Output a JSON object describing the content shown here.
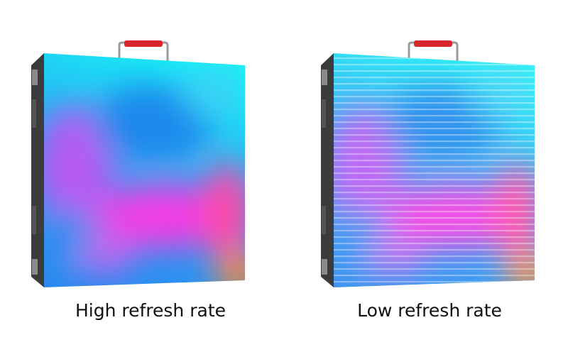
{
  "panels": [
    {
      "label": "High refresh rate"
    },
    {
      "label": "Low refresh rate"
    }
  ]
}
